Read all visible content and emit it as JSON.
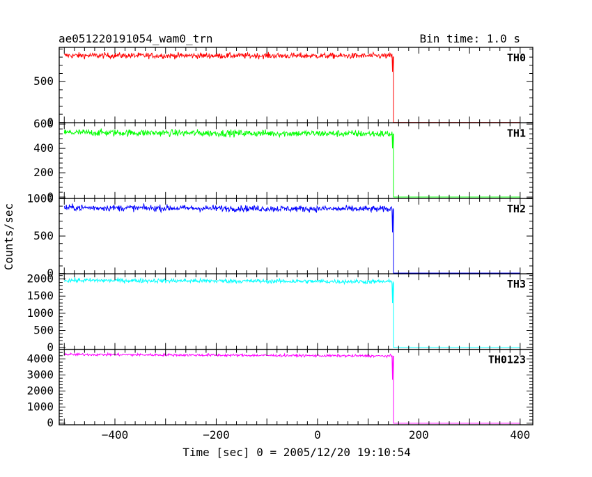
{
  "chart_data": {
    "type": "line",
    "title": "ae051220191054_wam0_trn",
    "subtitle": "Bin time: 1.0 s",
    "xlabel": "Time [sec] 0 = 2005/12/20 19:10:54",
    "ylabel": "Counts/sec",
    "xlim": [
      -510,
      425
    ],
    "x_ticks": [
      -400,
      -200,
      0,
      200,
      400
    ],
    "x_tick_labels": [
      "−400",
      "−200",
      "0",
      "200",
      "400"
    ],
    "grid": false,
    "step_time": 150,
    "panels": [
      {
        "name": "TH0",
        "color": "#ff0000",
        "ylim": [
          -5,
          920
        ],
        "y_ticks": [
          0,
          500
        ],
        "y_tick_labels": [
          "0",
          "500"
        ],
        "x_start": -500,
        "x_end": 150,
        "level_start": 820,
        "level_end": 815,
        "noise": 25,
        "after_level": 0,
        "dip": [
          148,
          620
        ]
      },
      {
        "name": "TH1",
        "color": "#00ff00",
        "ylim": [
          -10,
          610
        ],
        "y_ticks": [
          0,
          200,
          400,
          600
        ],
        "y_tick_labels": [
          "0",
          "200",
          "400",
          "600"
        ],
        "x_start": -500,
        "x_end": 150,
        "level_start": 530,
        "level_end": 520,
        "noise": 20,
        "after_level": 0,
        "dip": [
          148,
          400
        ]
      },
      {
        "name": "TH2",
        "color": "#0000ff",
        "ylim": [
          -5,
          1005
        ],
        "y_ticks": [
          0,
          500,
          1000
        ],
        "y_tick_labels": [
          "0",
          "500",
          "1000"
        ],
        "x_start": -500,
        "x_end": 150,
        "level_start": 880,
        "level_end": 860,
        "noise": 30,
        "after_level": 5,
        "dip": [
          148,
          550
        ]
      },
      {
        "name": "TH3",
        "color": "#00ffff",
        "ylim": [
          -50,
          2150
        ],
        "y_ticks": [
          0,
          500,
          1000,
          1500,
          2000
        ],
        "y_tick_labels": [
          "0",
          "500",
          "1000",
          "1500",
          "2000"
        ],
        "x_start": -500,
        "x_end": 150,
        "level_start": 1960,
        "level_end": 1920,
        "noise": 45,
        "after_level": 0,
        "dip": [
          148,
          1300
        ]
      },
      {
        "name": "TH0123",
        "color": "#ff00ff",
        "ylim": [
          -100,
          4600
        ],
        "y_ticks": [
          0,
          1000,
          2000,
          3000,
          4000
        ],
        "y_tick_labels": [
          "0",
          "1000",
          "2000",
          "3000",
          "4000"
        ],
        "x_start": -500,
        "x_end": 150,
        "level_start": 4280,
        "level_end": 4180,
        "noise": 55,
        "after_level": 0,
        "dip": [
          148,
          2700
        ]
      }
    ]
  }
}
